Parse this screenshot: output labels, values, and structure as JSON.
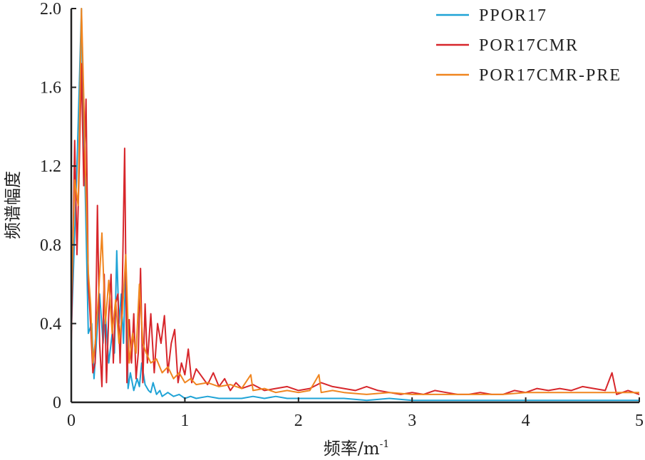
{
  "chart_data": {
    "type": "line",
    "xlabel": "频率/m",
    "xlabel_sup": "-1",
    "ylabel": "频谱幅度",
    "xlim": [
      0,
      5
    ],
    "ylim": [
      0,
      2.0
    ],
    "xticks": [
      "0",
      "1",
      "2",
      "3",
      "4",
      "5"
    ],
    "yticks": [
      "0",
      "0.4",
      "0.8",
      "1.2",
      "1.6",
      "2.0"
    ],
    "grid": false,
    "legend_position": "top-right",
    "series": [
      {
        "name": "PPOR17",
        "color": "#1fa3d6",
        "x": [
          0,
          0.05,
          0.09,
          0.1,
          0.12,
          0.15,
          0.18,
          0.2,
          0.22,
          0.25,
          0.28,
          0.3,
          0.33,
          0.36,
          0.38,
          0.4,
          0.42,
          0.44,
          0.46,
          0.48,
          0.5,
          0.52,
          0.55,
          0.58,
          0.6,
          0.62,
          0.65,
          0.68,
          0.7,
          0.72,
          0.75,
          0.78,
          0.8,
          0.85,
          0.9,
          0.95,
          1.0,
          1.05,
          1.1,
          1.2,
          1.3,
          1.4,
          1.5,
          1.6,
          1.7,
          1.8,
          1.9,
          2.0,
          2.2,
          2.4,
          2.6,
          2.8,
          3.0,
          3.2,
          3.4,
          3.6,
          3.8,
          4.0,
          4.2,
          4.4,
          4.6,
          4.8,
          5.0
        ],
        "values": [
          0.35,
          1.2,
          2.0,
          1.6,
          1.15,
          0.35,
          0.4,
          0.12,
          0.3,
          0.55,
          0.3,
          0.45,
          0.2,
          0.35,
          0.25,
          0.77,
          0.4,
          0.55,
          0.3,
          0.7,
          0.07,
          0.15,
          0.06,
          0.12,
          0.08,
          0.2,
          0.09,
          0.06,
          0.05,
          0.1,
          0.04,
          0.06,
          0.03,
          0.05,
          0.03,
          0.04,
          0.02,
          0.03,
          0.02,
          0.03,
          0.02,
          0.02,
          0.02,
          0.03,
          0.02,
          0.03,
          0.02,
          0.02,
          0.02,
          0.02,
          0.01,
          0.02,
          0.01,
          0.01,
          0.01,
          0.01,
          0.01,
          0.01,
          0.01,
          0.01,
          0.01,
          0.01,
          0.01
        ]
      },
      {
        "name": "POR17CMR",
        "color": "#d7262b",
        "x": [
          0,
          0.03,
          0.05,
          0.07,
          0.09,
          0.11,
          0.13,
          0.15,
          0.17,
          0.19,
          0.21,
          0.23,
          0.25,
          0.27,
          0.29,
          0.31,
          0.33,
          0.35,
          0.37,
          0.39,
          0.41,
          0.43,
          0.45,
          0.47,
          0.49,
          0.51,
          0.53,
          0.55,
          0.57,
          0.59,
          0.61,
          0.63,
          0.65,
          0.67,
          0.7,
          0.73,
          0.76,
          0.79,
          0.82,
          0.85,
          0.88,
          0.91,
          0.94,
          0.97,
          1.0,
          1.03,
          1.06,
          1.1,
          1.15,
          1.2,
          1.25,
          1.3,
          1.35,
          1.4,
          1.45,
          1.5,
          1.6,
          1.7,
          1.8,
          1.9,
          2.0,
          2.1,
          2.2,
          2.3,
          2.4,
          2.5,
          2.6,
          2.7,
          2.8,
          2.9,
          3.0,
          3.1,
          3.2,
          3.3,
          3.4,
          3.5,
          3.6,
          3.7,
          3.8,
          3.9,
          4.0,
          4.1,
          4.2,
          4.3,
          4.4,
          4.5,
          4.6,
          4.7,
          4.76,
          4.8,
          4.9,
          5.0
        ],
        "values": [
          0.3,
          1.33,
          0.75,
          1.2,
          1.72,
          1.1,
          1.54,
          0.6,
          0.4,
          0.15,
          0.2,
          1.0,
          0.3,
          0.08,
          0.65,
          0.1,
          0.45,
          0.65,
          0.2,
          0.5,
          0.55,
          0.2,
          0.6,
          1.29,
          0.1,
          0.42,
          0.2,
          0.45,
          0.12,
          0.25,
          0.68,
          0.1,
          0.5,
          0.2,
          0.45,
          0.15,
          0.4,
          0.3,
          0.44,
          0.15,
          0.3,
          0.37,
          0.1,
          0.2,
          0.14,
          0.27,
          0.1,
          0.17,
          0.13,
          0.09,
          0.15,
          0.08,
          0.12,
          0.06,
          0.1,
          0.07,
          0.09,
          0.06,
          0.07,
          0.08,
          0.06,
          0.07,
          0.1,
          0.08,
          0.07,
          0.06,
          0.08,
          0.06,
          0.05,
          0.04,
          0.05,
          0.04,
          0.06,
          0.05,
          0.04,
          0.04,
          0.05,
          0.04,
          0.04,
          0.06,
          0.05,
          0.07,
          0.06,
          0.07,
          0.06,
          0.08,
          0.07,
          0.06,
          0.15,
          0.04,
          0.06,
          0.04
        ]
      },
      {
        "name": "POR17CMR-PRE",
        "color": "#f0851f",
        "x": [
          0,
          0.03,
          0.06,
          0.09,
          0.11,
          0.13,
          0.15,
          0.17,
          0.19,
          0.21,
          0.24,
          0.27,
          0.3,
          0.33,
          0.36,
          0.39,
          0.42,
          0.45,
          0.48,
          0.51,
          0.54,
          0.57,
          0.6,
          0.63,
          0.66,
          0.7,
          0.75,
          0.8,
          0.85,
          0.9,
          0.95,
          1.0,
          1.05,
          1.1,
          1.2,
          1.3,
          1.4,
          1.5,
          1.58,
          1.6,
          1.7,
          1.8,
          1.9,
          2.0,
          2.1,
          2.18,
          2.2,
          2.3,
          2.4,
          2.6,
          2.8,
          3.0,
          3.2,
          3.4,
          3.6,
          3.8,
          4.0,
          4.2,
          4.4,
          4.6,
          4.8,
          5.0
        ],
        "values": [
          0.5,
          1.13,
          1.0,
          2.0,
          1.55,
          1.05,
          0.66,
          0.5,
          0.2,
          0.3,
          0.55,
          0.86,
          0.4,
          0.62,
          0.35,
          0.52,
          0.3,
          0.45,
          0.75,
          0.2,
          0.35,
          0.25,
          0.6,
          0.3,
          0.25,
          0.2,
          0.22,
          0.15,
          0.18,
          0.12,
          0.15,
          0.1,
          0.12,
          0.09,
          0.1,
          0.08,
          0.09,
          0.07,
          0.14,
          0.06,
          0.07,
          0.05,
          0.06,
          0.05,
          0.06,
          0.14,
          0.05,
          0.06,
          0.05,
          0.04,
          0.05,
          0.04,
          0.04,
          0.04,
          0.04,
          0.04,
          0.05,
          0.05,
          0.05,
          0.05,
          0.05,
          0.05
        ]
      }
    ]
  }
}
